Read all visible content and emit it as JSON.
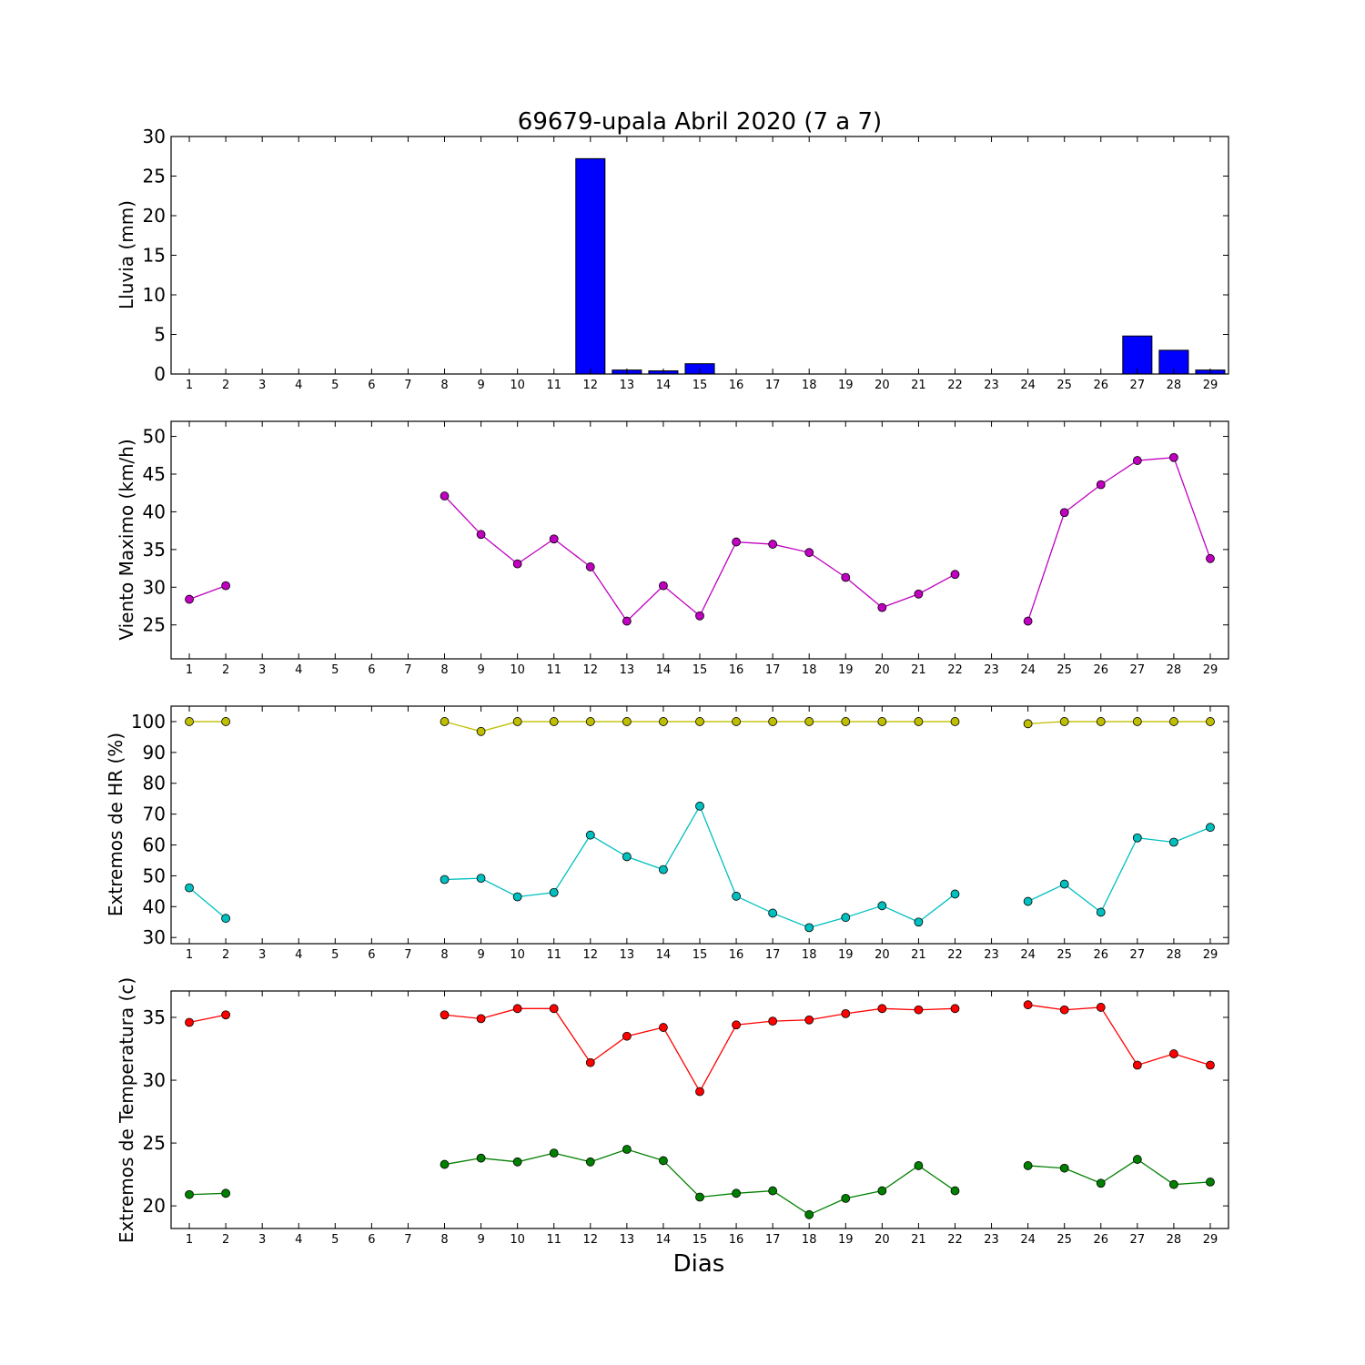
{
  "chart_data": [
    {
      "type": "bar",
      "title": "69679-upala Abril 2020  (7 a 7)",
      "ylabel": "Lluvia (mm)",
      "xlabel": "",
      "ylim": [
        0,
        30
      ],
      "yticks": [
        0,
        5,
        10,
        15,
        20,
        25,
        30
      ],
      "xlim": [
        0.5,
        29.5
      ],
      "categories": [
        1,
        2,
        3,
        4,
        5,
        6,
        7,
        8,
        9,
        10,
        11,
        12,
        13,
        14,
        15,
        16,
        17,
        18,
        19,
        20,
        21,
        22,
        23,
        24,
        25,
        26,
        27,
        28,
        29
      ],
      "values": [
        0,
        0,
        0,
        0,
        0,
        0,
        0,
        0,
        0,
        0,
        0,
        27.2,
        0.5,
        0.4,
        1.3,
        0,
        0,
        0,
        0,
        0,
        0,
        0,
        0,
        0,
        0,
        0,
        4.8,
        3.0,
        0.5
      ],
      "colors": {
        "bar": "#0000ff"
      }
    },
    {
      "type": "line",
      "ylabel": "Viento Maximo (km/h)",
      "ylim": [
        20.5,
        52
      ],
      "yticks": [
        25,
        30,
        35,
        40,
        45,
        50
      ],
      "xlim": [
        0.5,
        29.5
      ],
      "x": [
        1,
        2,
        3,
        4,
        5,
        6,
        7,
        8,
        9,
        10,
        11,
        12,
        13,
        14,
        15,
        16,
        17,
        18,
        19,
        20,
        21,
        22,
        23,
        24,
        25,
        26,
        27,
        28,
        29
      ],
      "series": [
        {
          "values": [
            28.4,
            30.2,
            null,
            null,
            null,
            null,
            null,
            42.1,
            37.0,
            33.1,
            36.4,
            32.7,
            25.5,
            30.2,
            26.2,
            36.0,
            35.7,
            34.6,
            31.3,
            27.3,
            29.1,
            31.7,
            null,
            25.5,
            39.9,
            43.6,
            46.8,
            47.2,
            33.8
          ],
          "color": "#bf00bf"
        }
      ]
    },
    {
      "type": "line",
      "ylabel": "Extremos de HR (%)",
      "ylim": [
        28,
        105
      ],
      "yticks": [
        30,
        40,
        50,
        60,
        70,
        80,
        90,
        100
      ],
      "xlim": [
        0.5,
        29.5
      ],
      "x": [
        1,
        2,
        3,
        4,
        5,
        6,
        7,
        8,
        9,
        10,
        11,
        12,
        13,
        14,
        15,
        16,
        17,
        18,
        19,
        20,
        21,
        22,
        23,
        24,
        25,
        26,
        27,
        28,
        29
      ],
      "series": [
        {
          "values": [
            100,
            100,
            null,
            null,
            null,
            null,
            null,
            100,
            96.8,
            100,
            100,
            100,
            100,
            100,
            100,
            100,
            100,
            100,
            100,
            100,
            100,
            100,
            null,
            99.3,
            100,
            100,
            100,
            100,
            100
          ],
          "color": "#bfbf00"
        },
        {
          "values": [
            46.1,
            36.2,
            null,
            null,
            null,
            null,
            null,
            48.8,
            49.2,
            43.2,
            44.6,
            63.2,
            56.2,
            52.0,
            72.6,
            43.4,
            37.9,
            33.2,
            36.5,
            40.3,
            35.0,
            44.1,
            null,
            41.7,
            47.3,
            38.2,
            62.3,
            60.9,
            65.7
          ],
          "color": "#00bfbf"
        }
      ]
    },
    {
      "type": "line",
      "ylabel": "Extremos de Temperatura (c)",
      "xlabel": "Dias",
      "ylim": [
        18.2,
        37.1
      ],
      "yticks": [
        20,
        25,
        30,
        35
      ],
      "xlim": [
        0.5,
        29.5
      ],
      "x": [
        1,
        2,
        3,
        4,
        5,
        6,
        7,
        8,
        9,
        10,
        11,
        12,
        13,
        14,
        15,
        16,
        17,
        18,
        19,
        20,
        21,
        22,
        23,
        24,
        25,
        26,
        27,
        28,
        29
      ],
      "series": [
        {
          "values": [
            34.6,
            35.2,
            null,
            null,
            null,
            null,
            null,
            35.2,
            34.9,
            35.7,
            35.7,
            31.4,
            33.5,
            34.2,
            29.1,
            34.4,
            34.7,
            34.8,
            35.3,
            35.7,
            35.6,
            35.7,
            null,
            36.0,
            35.6,
            35.8,
            31.2,
            32.1,
            31.2
          ],
          "color": "#ff0000"
        },
        {
          "values": [
            20.9,
            21.0,
            null,
            null,
            null,
            null,
            null,
            23.3,
            23.8,
            23.5,
            24.2,
            23.5,
            24.5,
            23.6,
            20.7,
            21.0,
            21.2,
            19.3,
            20.6,
            21.2,
            23.2,
            21.2,
            null,
            23.2,
            23.0,
            21.8,
            23.7,
            21.7,
            21.9
          ],
          "color": "#008000"
        }
      ]
    }
  ]
}
